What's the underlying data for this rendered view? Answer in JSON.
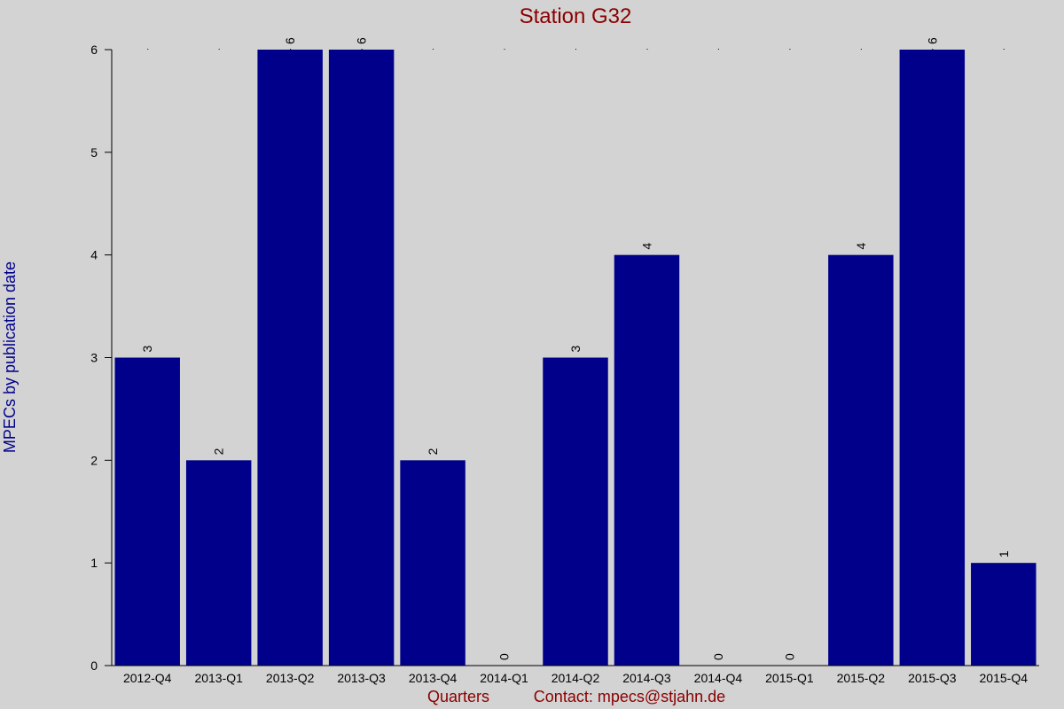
{
  "chart_data": {
    "type": "bar",
    "title": "Station G32",
    "xlabel": "Quarters",
    "ylabel": "MPECs by publication date",
    "contact": "Contact: mpecs@stjahn.de",
    "categories": [
      "2012-Q4",
      "2013-Q1",
      "2013-Q2",
      "2013-Q3",
      "2013-Q4",
      "2014-Q1",
      "2014-Q2",
      "2014-Q3",
      "2014-Q4",
      "2015-Q1",
      "2015-Q2",
      "2015-Q3",
      "2015-Q4"
    ],
    "values": [
      3,
      2,
      6,
      6,
      2,
      0,
      3,
      4,
      0,
      0,
      4,
      6,
      1
    ],
    "value_labels": [
      "3",
      "2",
      "6",
      "6",
      "2",
      "0",
      "3",
      "4",
      "0",
      "0",
      "4",
      "6",
      "1"
    ],
    "yticks": [
      "0",
      "1",
      "2",
      "3",
      "4",
      "5",
      "6"
    ],
    "ylim": [
      0,
      6
    ],
    "grid": false,
    "colors": {
      "background": "#d3d3d3",
      "bar": "#00008b",
      "title": "#8b0000",
      "ylabel": "#00008b",
      "xlabel": "#8b0000",
      "axis": "#000000"
    }
  }
}
